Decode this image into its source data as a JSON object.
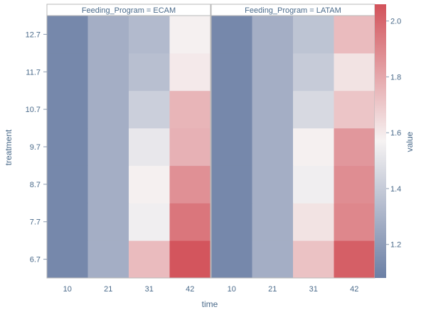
{
  "chart_data": {
    "type": "heatmap",
    "xlabel": "time",
    "ylabel": "treatment",
    "x_categories": [
      "10",
      "21",
      "31",
      "42"
    ],
    "y_categories": [
      "6.7",
      "7.7",
      "8.7",
      "9.7",
      "10.7",
      "11.7",
      "12.7"
    ],
    "facets": [
      {
        "title": "Feeding_Program = ECAM",
        "values": [
          [
            1.12,
            1.28,
            1.74,
            2.05
          ],
          [
            1.12,
            1.28,
            1.55,
            1.95
          ],
          [
            1.12,
            1.28,
            1.58,
            1.87
          ],
          [
            1.12,
            1.28,
            1.52,
            1.77
          ],
          [
            1.12,
            1.28,
            1.42,
            1.76
          ],
          [
            1.12,
            1.28,
            1.35,
            1.6
          ],
          [
            1.12,
            1.28,
            1.33,
            1.58
          ]
        ]
      },
      {
        "title": "Feeding_Program = LATAM",
        "values": [
          [
            1.12,
            1.28,
            1.72,
            2.02
          ],
          [
            1.12,
            1.28,
            1.62,
            1.9
          ],
          [
            1.12,
            1.28,
            1.55,
            1.88
          ],
          [
            1.12,
            1.28,
            1.58,
            1.85
          ],
          [
            1.12,
            1.28,
            1.46,
            1.71
          ],
          [
            1.12,
            1.28,
            1.4,
            1.62
          ],
          [
            1.12,
            1.28,
            1.37,
            1.74
          ]
        ]
      }
    ],
    "colorbar": {
      "title": "value",
      "range": [
        1.08,
        2.06
      ],
      "ticks": [
        "1.2",
        "1.4",
        "1.6",
        "1.8",
        "2.0"
      ],
      "colors": {
        "low": "#6b7fa5",
        "mid": "#f6f3f3",
        "high": "#d2525a"
      }
    }
  }
}
